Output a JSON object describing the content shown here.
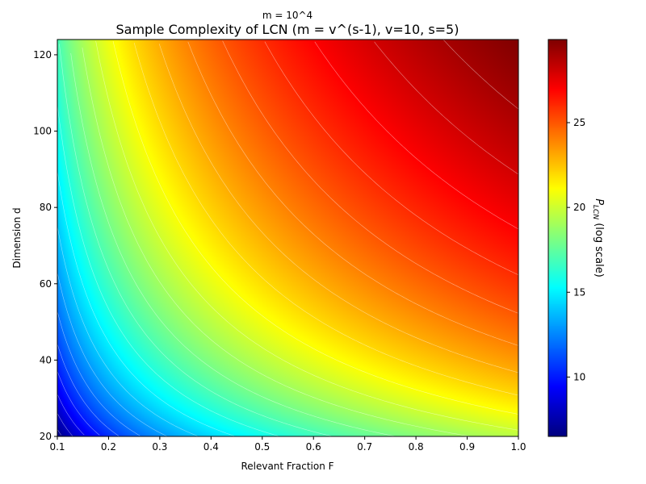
{
  "chart_data": {
    "type": "heatmap",
    "suptitle": "m = 10^4",
    "title": "Sample Complexity of LCN (m = v^(s-1), v=10, s=5)",
    "xlabel": "Relevant Fraction F",
    "ylabel": "Dimension d",
    "xlim": [
      0.1,
      1.0
    ],
    "ylim": [
      20,
      124
    ],
    "x_ticks": [
      0.1,
      0.2,
      0.3,
      0.4,
      0.5,
      0.6,
      0.7,
      0.8,
      0.9,
      1.0
    ],
    "x_tick_labels": [
      "0.1",
      "0.2",
      "0.3",
      "0.4",
      "0.5",
      "0.6",
      "0.7",
      "0.8",
      "0.9",
      "1.0"
    ],
    "y_ticks": [
      20,
      40,
      60,
      80,
      100,
      120
    ],
    "y_tick_labels": [
      "20",
      "40",
      "60",
      "80",
      "100",
      "120"
    ],
    "colormap": "jet",
    "colorbar": {
      "label_main": "P",
      "label_sub": "LCN",
      "label_rest": " (log scale)",
      "vmin": 6.5,
      "vmax": 29.9,
      "ticks": [
        10,
        15,
        20,
        25
      ],
      "tick_labels": [
        "10",
        "15",
        "20",
        "25"
      ]
    },
    "z_function": "log(P_LCN) = log(m) + F*d*log(v) / (s-1) approximately",
    "contour_color": "#ffffff",
    "contour_levels": [
      7,
      8,
      9,
      10,
      11,
      12,
      13,
      14,
      15,
      16,
      17,
      18,
      19,
      20,
      21,
      22,
      23,
      24,
      25,
      26,
      27,
      28,
      29
    ]
  }
}
